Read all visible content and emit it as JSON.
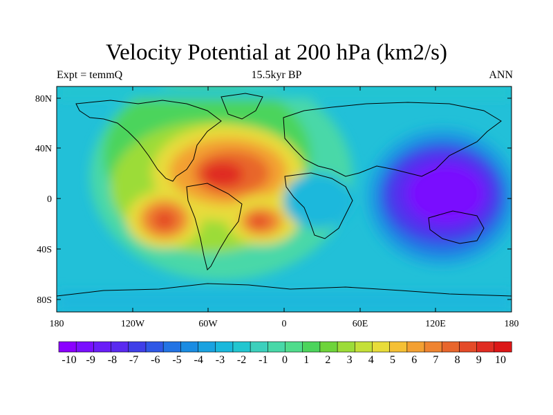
{
  "title": "Velocity Potential at 200 hPa (km2/s)",
  "left_subtitle": "Expt = temmQ",
  "center_subtitle": "15.5kyr BP",
  "right_subtitle": "ANN",
  "lat_ticks": [
    "80N",
    "40N",
    "0",
    "40S",
    "80S"
  ],
  "lon_ticks": [
    "180",
    "120W",
    "60W",
    "0",
    "60E",
    "120E",
    "180"
  ],
  "colorbar_labels": [
    "-10",
    "-9",
    "-8",
    "-7",
    "-6",
    "-5",
    "-4",
    "-3",
    "-2",
    "-1",
    "0",
    "1",
    "2",
    "3",
    "4",
    "5",
    "6",
    "7",
    "8",
    "9",
    "10"
  ],
  "colorbar_colors": [
    "#8b00ff",
    "#7a10ff",
    "#6a1ef8",
    "#5a2af0",
    "#3f3fe8",
    "#2f58e6",
    "#2374e4",
    "#1a8ce2",
    "#1aa2e0",
    "#1ab8dc",
    "#22c6d0",
    "#3cd0bc",
    "#48d8a8",
    "#50dc8c",
    "#4cd45c",
    "#6ed43a",
    "#9cdc38",
    "#c4e038",
    "#e8dc3a",
    "#f5c035",
    "#f3a032",
    "#ef8430",
    "#e8662c",
    "#e44a28",
    "#e02c22",
    "#dc1616"
  ],
  "chart_data": {
    "type": "heatmap",
    "title": "Velocity Potential at 200 hPa (km2/s)",
    "xlim": [
      -180,
      180
    ],
    "ylim": [
      -90,
      90
    ],
    "value_range": [
      -10,
      10
    ],
    "features": [
      {
        "lon": -45,
        "lat": 18,
        "value": 9.5
      },
      {
        "lon": -95,
        "lat": -15,
        "value": 8.3
      },
      {
        "lon": -20,
        "lat": -18,
        "value": 8.2
      },
      {
        "lon": 140,
        "lat": 5,
        "value": -9.8
      },
      {
        "lon": 25,
        "lat": 0,
        "value": 1.0
      }
    ]
  }
}
